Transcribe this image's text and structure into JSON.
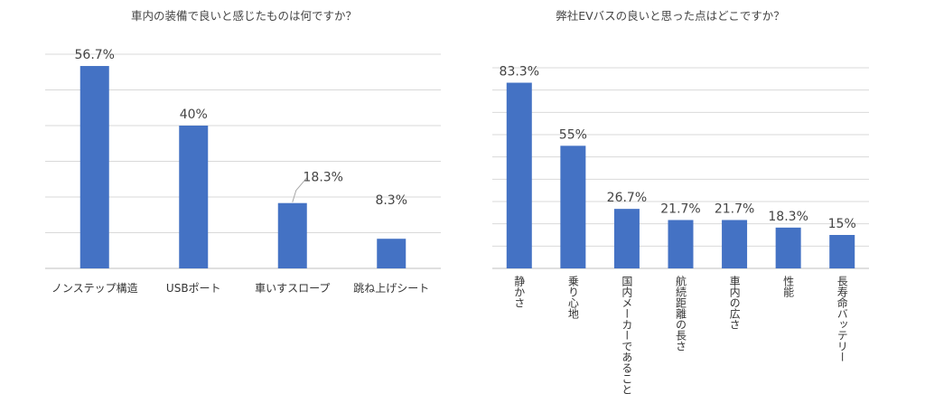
{
  "colors": {
    "bar": "#4472c4"
  },
  "chart_data": [
    {
      "type": "bar",
      "title": "車内の装備で良いと感じたものは何ですか？",
      "categories": [
        "ノンステップ構造",
        "USBポート",
        "車いすスロープ",
        "跳ね上げシート"
      ],
      "values": [
        56.7,
        40,
        18.3,
        8.3
      ],
      "value_labels": [
        "56.7%",
        "40%",
        "18.3%",
        "8.3%"
      ],
      "ylim": [
        0,
        60
      ],
      "grid": true,
      "legend": "none"
    },
    {
      "type": "bar",
      "title": "弊社EVバスの良いと思った点はどこですか？",
      "categories": [
        "静かさ",
        "乗り心地",
        "国内メーカーであること",
        "航続距離の長さ",
        "車内の広さ",
        "性能",
        "長寿命バッテリー"
      ],
      "values": [
        83.3,
        55,
        26.7,
        21.7,
        21.7,
        18.3,
        15
      ],
      "value_labels": [
        "83.3%",
        "55%",
        "26.7%",
        "21.7%",
        "21.7%",
        "18.3%",
        "15%"
      ],
      "ylim": [
        0,
        90
      ],
      "grid": true,
      "legend": "none"
    }
  ]
}
